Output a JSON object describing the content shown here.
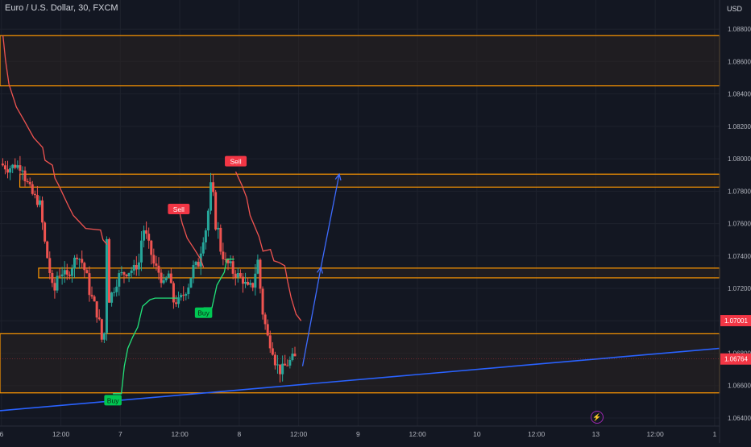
{
  "header": {
    "title": "Euro / U.S. Dollar, 30, FXCM",
    "currency": "USD"
  },
  "colors": {
    "background": "#131722",
    "zone_fill": "#2a2220",
    "zone_border": "#ff9800",
    "supertrend_up": "#22e37a",
    "supertrend_down": "#ef5350",
    "candle_up": "#26a69a",
    "candle_down": "#ef5350",
    "trendline": "#2962ff",
    "projection": "#3d6bff",
    "price_badge": "#f23645"
  },
  "chart_data": {
    "type": "candlestick",
    "y_ticks": [
      "1.08800",
      "1.08600",
      "1.08400",
      "1.08200",
      "1.08000",
      "1.07800",
      "1.07600",
      "1.07400",
      "1.07200",
      "1.07000",
      "1.06800",
      "1.06600",
      "1.06400"
    ],
    "y_tick_values": [
      1.088,
      1.086,
      1.084,
      1.082,
      1.08,
      1.078,
      1.076,
      1.074,
      1.072,
      1.07,
      1.068,
      1.066,
      1.064
    ],
    "x_ticks": [
      "6",
      "12:00",
      "7",
      "12:00",
      "8",
      "12:00",
      "9",
      "12:00",
      "10",
      "12:00",
      "13",
      "12:00",
      "1"
    ],
    "x_tick_hours": [
      0,
      12,
      24,
      36,
      48,
      60,
      72,
      84,
      96,
      108,
      120,
      132,
      144
    ],
    "ylim": [
      1.0635,
      1.0898
    ],
    "xlim_hours": [
      -0.3,
      145
    ],
    "price_labels": [
      {
        "text": "1.07001",
        "value": 1.07001
      },
      {
        "text": "1.06764",
        "value": 1.06764
      }
    ],
    "zones": [
      {
        "top": 1.0876,
        "bottom": 1.0845
      },
      {
        "top": 1.07905,
        "bottom": 1.07825
      },
      {
        "top": 1.07325,
        "bottom": 1.07265
      },
      {
        "top": 1.0692,
        "bottom": 1.06555
      }
    ],
    "signals": [
      {
        "text": "Buy",
        "hour": 22.5,
        "value": 1.0651,
        "kind": "buy"
      },
      {
        "text": "Sell",
        "hour": 35.8,
        "value": 1.0769,
        "kind": "sell"
      },
      {
        "text": "Buy",
        "hour": 40.8,
        "value": 1.0705,
        "kind": "buy"
      },
      {
        "text": "Sell",
        "hour": 47.3,
        "value": 1.07985,
        "kind": "sell"
      }
    ],
    "supertrend_down_1": [
      [
        0.3,
        1.0876
      ],
      [
        0.8,
        1.0861
      ],
      [
        1.5,
        1.0846
      ],
      [
        3,
        1.0832
      ],
      [
        4.5,
        1.0824
      ],
      [
        6.5,
        1.0813
      ],
      [
        8.3,
        1.0807
      ],
      [
        8.8,
        1.0799
      ],
      [
        10.3,
        1.0796
      ],
      [
        10.8,
        1.0788
      ],
      [
        11.5,
        1.0784
      ],
      [
        13.5,
        1.0771
      ],
      [
        14.5,
        1.0765
      ],
      [
        17,
        1.0757
      ],
      [
        20,
        1.0756
      ],
      [
        20.5,
        1.075
      ],
      [
        21.3,
        1.0747
      ]
    ],
    "supertrend_up_1": [
      [
        22.5,
        1.0655
      ],
      [
        24.2,
        1.0655
      ],
      [
        24.8,
        1.0672
      ],
      [
        25.5,
        1.0683
      ],
      [
        26.5,
        1.069
      ],
      [
        27.5,
        1.0696
      ],
      [
        28.5,
        1.0709
      ],
      [
        30,
        1.0713
      ],
      [
        31,
        1.0714
      ],
      [
        35.5,
        1.0714
      ]
    ],
    "supertrend_down_2": [
      [
        35.8,
        1.0769
      ],
      [
        36.5,
        1.076
      ],
      [
        37.5,
        1.0751
      ],
      [
        39,
        1.0744
      ],
      [
        40.2,
        1.0738
      ],
      [
        40.8,
        1.0733
      ]
    ],
    "supertrend_up_2": [
      [
        40.8,
        1.0708
      ],
      [
        42.5,
        1.0708
      ],
      [
        43.5,
        1.0722
      ],
      [
        45,
        1.073
      ],
      [
        45.5,
        1.0738
      ],
      [
        47,
        1.0738
      ]
    ],
    "supertrend_down_3": [
      [
        47.3,
        1.0792
      ],
      [
        48.5,
        1.0784
      ],
      [
        49.5,
        1.0776
      ],
      [
        50.2,
        1.0765
      ],
      [
        52,
        1.0752
      ],
      [
        52.8,
        1.0743
      ],
      [
        54.3,
        1.0744
      ],
      [
        55,
        1.0737
      ],
      [
        56,
        1.0736
      ],
      [
        57.2,
        1.0734
      ],
      [
        57.8,
        1.0724
      ],
      [
        58.5,
        1.0714
      ],
      [
        59.5,
        1.0704
      ],
      [
        60.5,
        1.07
      ]
    ],
    "trendline": [
      [
        -0.3,
        1.06445
      ],
      [
        145,
        1.0683
      ]
    ],
    "projection": [
      [
        60.8,
        1.0672
      ],
      [
        64.5,
        1.0733
      ],
      [
        68.2,
        1.07905
      ]
    ],
    "price_path": [
      [
        0,
        1.0797
      ],
      [
        1.5,
        1.0794
      ],
      [
        3,
        1.0796
      ],
      [
        4.5,
        1.0795
      ],
      [
        5,
        1.0788
      ],
      [
        6.5,
        1.0778
      ],
      [
        8,
        1.0772
      ],
      [
        9,
        1.0748
      ],
      [
        10,
        1.073
      ],
      [
        10.8,
        1.0715
      ],
      [
        11.5,
        1.0728
      ],
      [
        12.5,
        1.073
      ],
      [
        13.5,
        1.0727
      ],
      [
        14.5,
        1.0734
      ],
      [
        15.5,
        1.0741
      ],
      [
        16.5,
        1.0736
      ],
      [
        17.5,
        1.0727
      ],
      [
        18,
        1.0718
      ],
      [
        19,
        1.071
      ],
      [
        20,
        1.0699
      ],
      [
        20.8,
        1.0682
      ],
      [
        21.2,
        1.0703
      ],
      [
        21.5,
        1.0752
      ],
      [
        21.8,
        1.0712
      ],
      [
        23,
        1.072
      ],
      [
        24,
        1.0728
      ],
      [
        25.5,
        1.073
      ],
      [
        27,
        1.0732
      ],
      [
        28,
        1.0736
      ],
      [
        28.8,
        1.0758
      ],
      [
        29.5,
        1.0752
      ],
      [
        30.5,
        1.0741
      ],
      [
        31,
        1.0735
      ],
      [
        32,
        1.073
      ],
      [
        33,
        1.0722
      ],
      [
        34,
        1.0729
      ],
      [
        35,
        1.0712
      ],
      [
        36,
        1.0712
      ],
      [
        37,
        1.0716
      ],
      [
        38,
        1.0722
      ],
      [
        39,
        1.0733
      ],
      [
        40,
        1.0735
      ],
      [
        40.8,
        1.0749
      ],
      [
        41.8,
        1.076
      ],
      [
        42.3,
        1.078
      ],
      [
        42.8,
        1.0788
      ],
      [
        43.3,
        1.076
      ],
      [
        44,
        1.0756
      ],
      [
        44.5,
        1.0744
      ],
      [
        45.5,
        1.0736
      ],
      [
        46.5,
        1.0734
      ],
      [
        47,
        1.073
      ],
      [
        48,
        1.0728
      ],
      [
        49,
        1.0725
      ],
      [
        50,
        1.072
      ],
      [
        51,
        1.0722
      ],
      [
        51.5,
        1.073
      ],
      [
        52,
        1.0737
      ],
      [
        52.5,
        1.072
      ],
      [
        53,
        1.0705
      ],
      [
        54,
        1.069
      ],
      [
        55,
        1.0682
      ],
      [
        55.5,
        1.0675
      ],
      [
        56.5,
        1.0669
      ],
      [
        57.5,
        1.0672
      ],
      [
        58.5,
        1.0675
      ],
      [
        59,
        1.0677
      ]
    ]
  }
}
